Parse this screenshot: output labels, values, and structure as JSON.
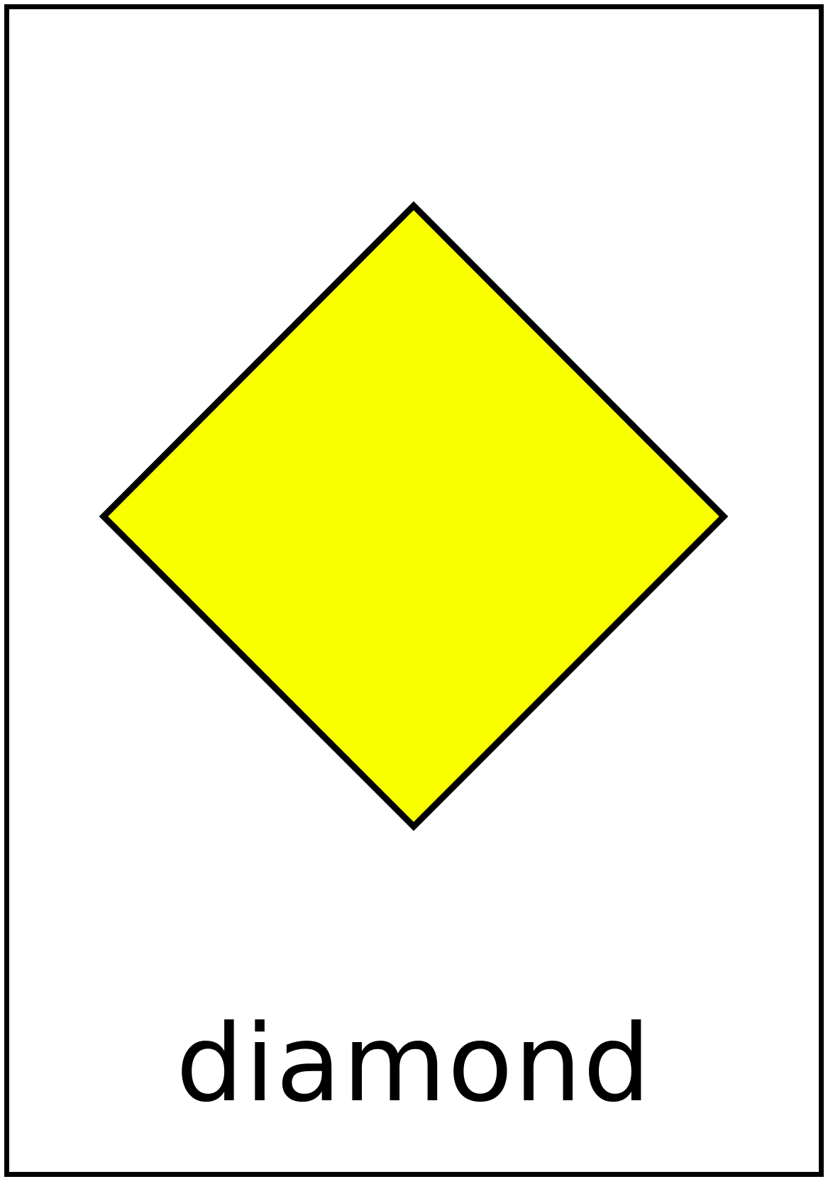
{
  "card": {
    "label": "diamond",
    "shape_name": "diamond",
    "fill_color": "#FAFF00",
    "outline_color": "#000000",
    "border_color": "#000000",
    "background_color": "#FFFFFF"
  }
}
